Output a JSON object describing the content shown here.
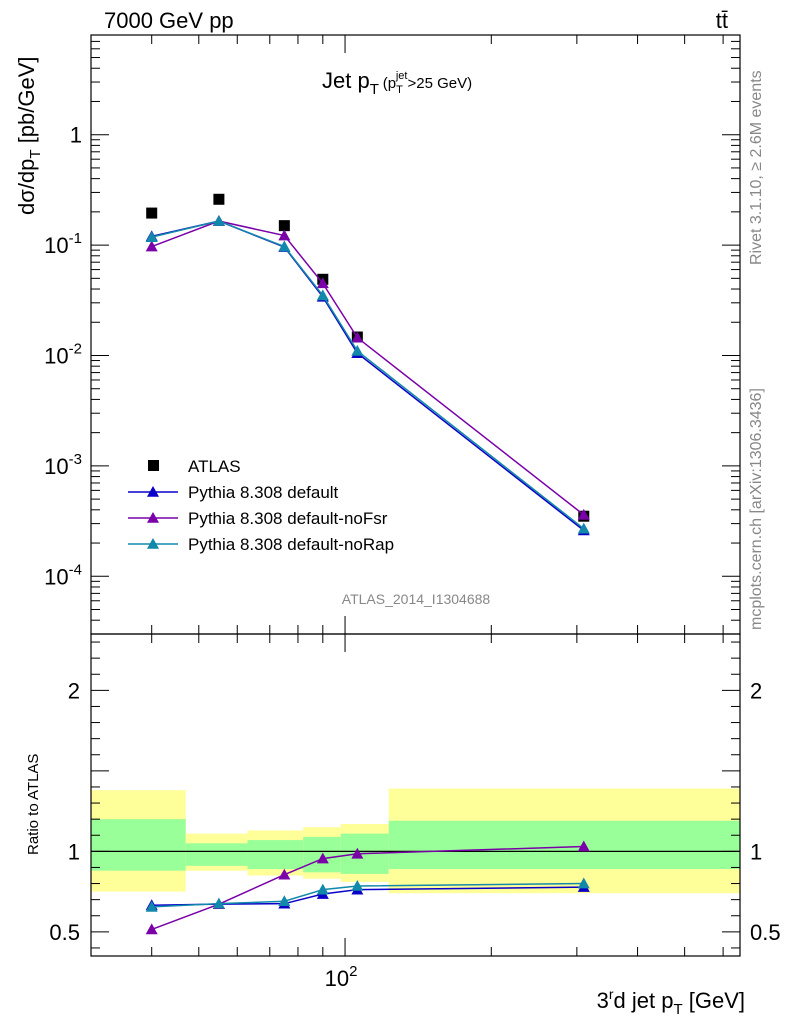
{
  "header": {
    "energy_label": "7000 GeV pp",
    "process_label": "tt̄"
  },
  "side_labels": {
    "rivet": "Rivet 3.1.10, ≥ 2.6M events",
    "mcplots": "mcplots.cern.ch [arXiv:1306.3436]"
  },
  "watermark": "ATLAS_2014_I1304688",
  "colors": {
    "atlas": "#000000",
    "default": "#0a00c8",
    "noFsr": "#7a00a8",
    "noRap": "#1288aa",
    "band_inner": "#99ff99",
    "band_outer": "#ffff99"
  },
  "chart_data": [
    {
      "panel": "main",
      "type": "scatter",
      "title": "Jet p_T (p_T^jet>25 GeV)",
      "ylabel": "dσ/dp_T [pb/GeV]",
      "xscale": "log",
      "yscale": "log",
      "xlim": [
        30,
        650
      ],
      "ylim": [
        3e-05,
        8
      ],
      "y_tick_labels": [
        "10^-4",
        "10^-3",
        "10^-2",
        "10^-1",
        "1"
      ],
      "legend_position": "bottom-left",
      "x": [
        40,
        55,
        75,
        90,
        106,
        310
      ],
      "series": [
        {
          "name": "ATLAS",
          "marker": "square",
          "values": [
            0.195,
            0.26,
            0.15,
            0.049,
            0.0147,
            0.00035
          ]
        },
        {
          "name": "Pythia 8.308 default",
          "marker": "triangle",
          "values": [
            0.12,
            0.165,
            0.096,
            0.034,
            0.0105,
            0.00026
          ]
        },
        {
          "name": "Pythia 8.308 default-noFsr",
          "marker": "triangle",
          "values": [
            0.097,
            0.165,
            0.122,
            0.045,
            0.0145,
            0.00036
          ]
        },
        {
          "name": "Pythia 8.308 default-noRap",
          "marker": "triangle",
          "values": [
            0.118,
            0.165,
            0.097,
            0.035,
            0.011,
            0.00027
          ]
        }
      ]
    },
    {
      "panel": "ratio",
      "type": "line",
      "ylabel": "Ratio to ATLAS",
      "xlabel": "3^rd jet p_T [GeV]",
      "xscale": "log",
      "xlim": [
        30,
        650
      ],
      "ylim": [
        0.35,
        2.35
      ],
      "y_ticks": [
        0.5,
        1,
        2
      ],
      "x_tick_labels": [
        "10^2"
      ],
      "bands": [
        {
          "x0": 30,
          "x1": 47,
          "inner": [
            0.88,
            1.2
          ],
          "outer": [
            0.75,
            1.38
          ]
        },
        {
          "x0": 47,
          "x1": 63,
          "inner": [
            0.91,
            1.05
          ],
          "outer": [
            0.88,
            1.11
          ]
        },
        {
          "x0": 63,
          "x1": 82,
          "inner": [
            0.89,
            1.07
          ],
          "outer": [
            0.85,
            1.13
          ]
        },
        {
          "x0": 82,
          "x1": 98,
          "inner": [
            0.87,
            1.09
          ],
          "outer": [
            0.83,
            1.15
          ]
        },
        {
          "x0": 98,
          "x1": 123,
          "inner": [
            0.86,
            1.11
          ],
          "outer": [
            0.81,
            1.17
          ]
        },
        {
          "x0": 123,
          "x1": 650,
          "inner": [
            0.89,
            1.19
          ],
          "outer": [
            0.74,
            1.39
          ]
        }
      ],
      "x": [
        40,
        55,
        75,
        90,
        106,
        310
      ],
      "series": [
        {
          "name": "Pythia 8.308 default",
          "values": [
            0.665,
            0.672,
            0.675,
            0.735,
            0.762,
            0.778
          ]
        },
        {
          "name": "Pythia 8.308 default-noFsr",
          "values": [
            0.515,
            0.672,
            0.855,
            0.955,
            0.985,
            1.03
          ]
        },
        {
          "name": "Pythia 8.308 default-noRap",
          "values": [
            0.655,
            0.675,
            0.69,
            0.762,
            0.785,
            0.8
          ]
        }
      ]
    }
  ]
}
